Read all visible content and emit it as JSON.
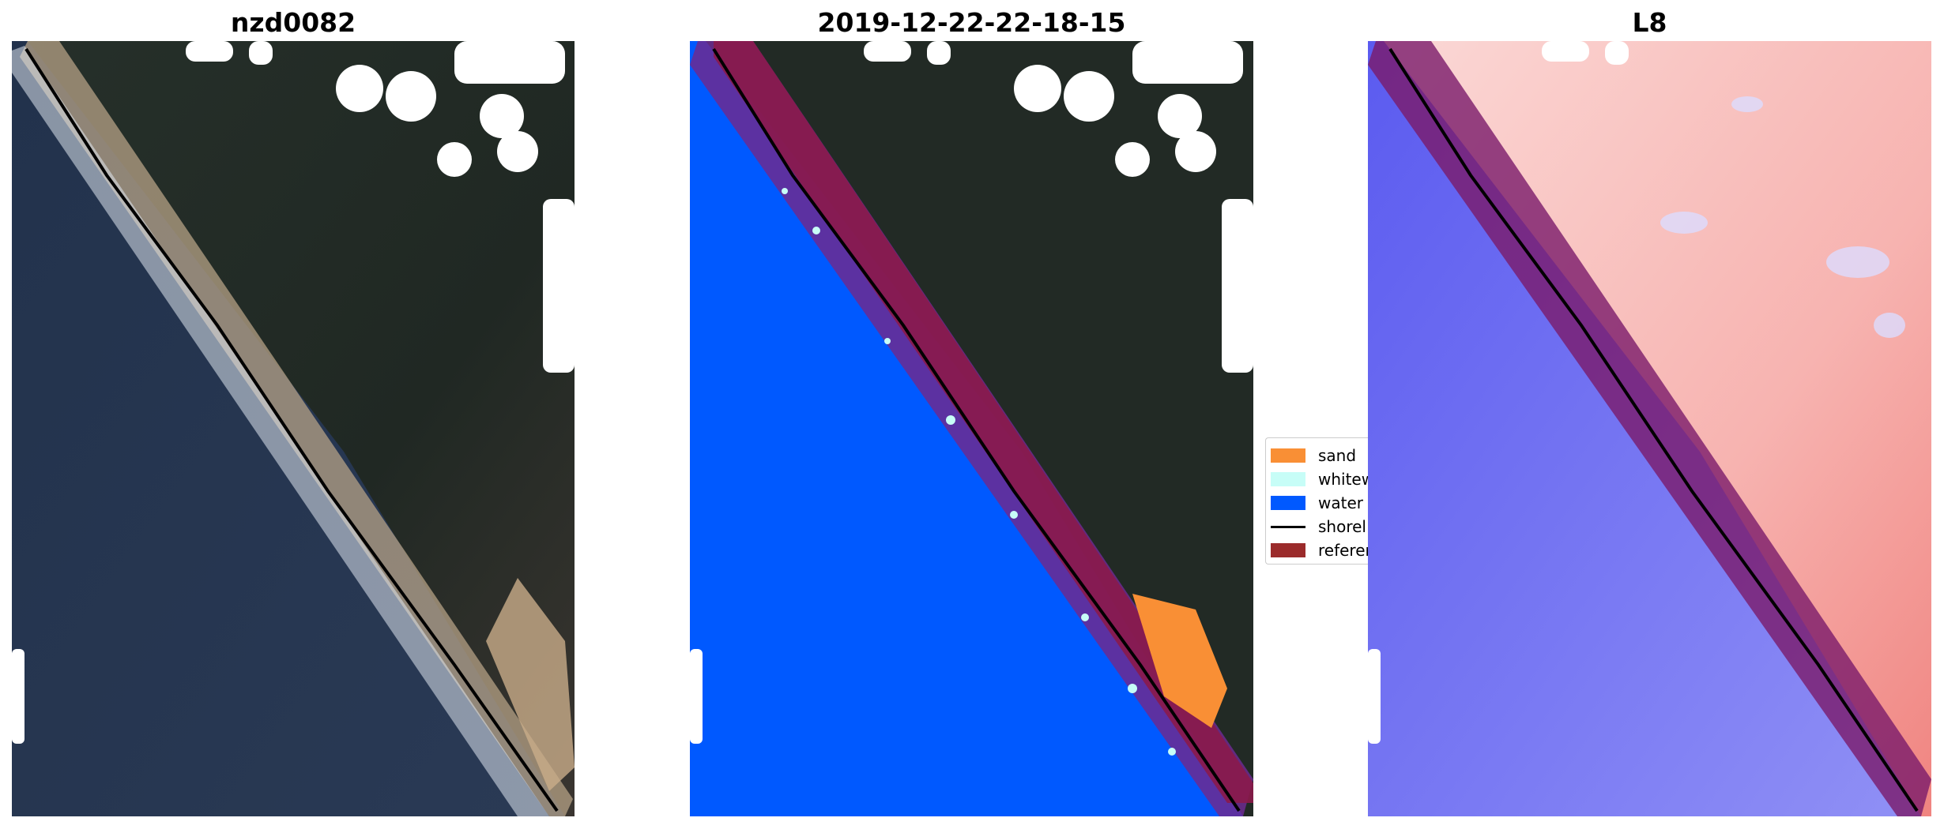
{
  "titles": {
    "panel1": "nzd0082",
    "panel2": "2019-12-22-22-18-15",
    "panel3": "L8"
  },
  "legend": {
    "items": [
      {
        "label": "sand",
        "color": "#f98f35"
      },
      {
        "label": "whitew",
        "color": "#c7fdf7"
      },
      {
        "label": "water",
        "color": "#0059ff"
      },
      {
        "label": "shorel",
        "color": "#000000"
      },
      {
        "label": "referen",
        "color": "#9b2b2b"
      }
    ]
  },
  "colors": {
    "ocean_rgb": "#26364f",
    "land_rgb": "#232a24",
    "beach_sand": "#c9ad8a",
    "water_class": "#0059ff",
    "reference_buffer": "#8b1a4a",
    "index_positive": "#f7b3b0",
    "index_negative": "#7b7bf0"
  }
}
